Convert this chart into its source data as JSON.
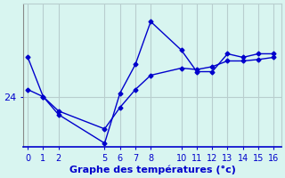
{
  "line1_x": [
    0,
    1,
    2,
    5,
    6,
    7,
    8,
    10,
    11,
    12,
    13,
    14,
    15,
    16
  ],
  "line1_y": [
    24.55,
    24.0,
    23.75,
    23.35,
    24.05,
    24.45,
    25.05,
    24.65,
    24.35,
    24.35,
    24.6,
    24.55,
    24.6,
    24.6
  ],
  "line2_x": [
    0,
    1,
    2,
    5,
    6,
    7,
    8,
    10,
    11,
    12,
    13,
    14,
    15,
    16
  ],
  "line2_y": [
    24.1,
    24.0,
    23.8,
    23.55,
    23.85,
    24.1,
    24.3,
    24.4,
    24.38,
    24.42,
    24.5,
    24.5,
    24.52,
    24.55
  ],
  "line_color": "#0000cc",
  "background_color": "#d8f5f0",
  "grid_color": "#b8cece",
  "axis_color": "#0000cc",
  "xlabel": "Graphe des températures (°c)",
  "ytick_label": "24",
  "ytick_value": 24.0,
  "xlim": [
    -0.3,
    16.5
  ],
  "ylim": [
    23.3,
    25.3
  ],
  "xticks": [
    0,
    1,
    2,
    5,
    6,
    7,
    8,
    10,
    11,
    12,
    13,
    14,
    15,
    16
  ],
  "xlabel_fontsize": 8,
  "tick_fontsize": 7,
  "line_width": 1.0,
  "marker_size": 2.5
}
